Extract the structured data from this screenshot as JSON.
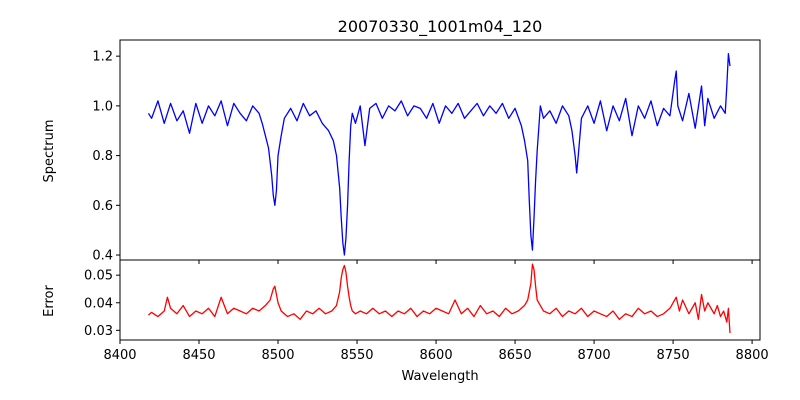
{
  "chart_data": [
    {
      "type": "line",
      "title": "20070330_1001m04_120",
      "xlabel": "",
      "ylabel": "Spectrum",
      "xlim": [
        8400,
        8805
      ],
      "ylim": [
        0.38,
        1.265
      ],
      "xticks": [
        8400,
        8450,
        8500,
        8550,
        8600,
        8650,
        8700,
        8750,
        8800
      ],
      "xticks_labeled": false,
      "yticks": [
        0.4,
        0.6,
        0.8,
        1.0,
        1.2
      ],
      "ytick_labels": [
        "0.4",
        "0.6",
        "0.8",
        "1.0",
        "1.2"
      ],
      "grid": false,
      "series": [
        {
          "color": "#0000ff",
          "x": [
            8418,
            8420,
            8424,
            8428,
            8432,
            8436,
            8440,
            8444,
            8448,
            8452,
            8456,
            8460,
            8464,
            8468,
            8472,
            8476,
            8480,
            8484,
            8488,
            8490,
            8492,
            8494,
            8496,
            8497,
            8498,
            8499,
            8500,
            8502,
            8504,
            8508,
            8512,
            8516,
            8520,
            8524,
            8528,
            8532,
            8535,
            8537,
            8539,
            8540,
            8541,
            8542,
            8543,
            8544,
            8545,
            8546,
            8547,
            8549,
            8552,
            8555,
            8558,
            8562,
            8566,
            8570,
            8574,
            8578,
            8582,
            8586,
            8590,
            8594,
            8598,
            8602,
            8606,
            8610,
            8614,
            8618,
            8622,
            8626,
            8630,
            8634,
            8638,
            8642,
            8646,
            8650,
            8654,
            8656,
            8658,
            8659,
            8660,
            8661,
            8662,
            8663,
            8664,
            8665,
            8666,
            8668,
            8672,
            8676,
            8680,
            8684,
            8686,
            8688,
            8689,
            8690,
            8692,
            8696,
            8700,
            8704,
            8708,
            8712,
            8716,
            8720,
            8724,
            8728,
            8732,
            8736,
            8740,
            8744,
            8748,
            8751,
            8752,
            8753,
            8756,
            8760,
            8764,
            8768,
            8770,
            8772,
            8776,
            8780,
            8783,
            8784,
            8785,
            8786
          ],
          "values": [
            0.97,
            0.95,
            1.02,
            0.93,
            1.01,
            0.94,
            0.98,
            0.89,
            1.01,
            0.93,
            1.0,
            0.96,
            1.02,
            0.92,
            1.01,
            0.97,
            0.94,
            1.0,
            0.97,
            0.93,
            0.88,
            0.83,
            0.72,
            0.64,
            0.6,
            0.66,
            0.8,
            0.88,
            0.95,
            0.99,
            0.94,
            1.01,
            0.96,
            0.98,
            0.93,
            0.9,
            0.86,
            0.8,
            0.67,
            0.55,
            0.45,
            0.4,
            0.47,
            0.6,
            0.78,
            0.92,
            0.97,
            0.93,
            1.0,
            0.84,
            0.99,
            1.01,
            0.95,
            1.0,
            0.98,
            1.02,
            0.96,
            1.0,
            0.99,
            0.95,
            1.01,
            0.93,
            1.0,
            0.97,
            1.01,
            0.95,
            0.98,
            1.01,
            0.96,
            1.0,
            0.97,
            1.01,
            0.95,
            0.99,
            0.92,
            0.86,
            0.78,
            0.62,
            0.48,
            0.42,
            0.55,
            0.7,
            0.82,
            0.91,
            1.0,
            0.95,
            0.98,
            0.93,
            1.0,
            0.96,
            0.9,
            0.8,
            0.73,
            0.8,
            0.95,
            1.0,
            0.93,
            1.02,
            0.9,
            1.0,
            0.94,
            1.03,
            0.88,
            1.0,
            0.95,
            1.02,
            0.92,
            0.99,
            0.96,
            1.1,
            1.14,
            1.0,
            0.94,
            1.05,
            0.91,
            1.08,
            0.92,
            1.03,
            0.95,
            1.0,
            0.97,
            1.08,
            1.21,
            1.16
          ]
        }
      ]
    },
    {
      "type": "line",
      "title": "",
      "xlabel": "Wavelength",
      "ylabel": "Error",
      "xlim": [
        8400,
        8805
      ],
      "ylim": [
        0.0265,
        0.0555
      ],
      "xticks": [
        8400,
        8450,
        8500,
        8550,
        8600,
        8650,
        8700,
        8750,
        8800
      ],
      "xtick_labels": [
        "8400",
        "8450",
        "8500",
        "8550",
        "8600",
        "8650",
        "8700",
        "8750",
        "8800"
      ],
      "yticks": [
        0.03,
        0.04,
        0.05
      ],
      "ytick_labels": [
        "0.03",
        "0.04",
        "0.05"
      ],
      "grid": false,
      "series": [
        {
          "color": "#ff0000",
          "x": [
            8418,
            8420,
            8424,
            8428,
            8430,
            8432,
            8436,
            8440,
            8444,
            8448,
            8452,
            8456,
            8460,
            8464,
            8468,
            8472,
            8476,
            8480,
            8484,
            8488,
            8492,
            8495,
            8497,
            8498,
            8499,
            8500,
            8502,
            8506,
            8510,
            8514,
            8518,
            8522,
            8526,
            8530,
            8534,
            8537,
            8539,
            8540,
            8541,
            8542,
            8543,
            8544,
            8545,
            8546,
            8547,
            8549,
            8552,
            8556,
            8560,
            8564,
            8568,
            8572,
            8576,
            8580,
            8584,
            8588,
            8592,
            8596,
            8600,
            8604,
            8608,
            8612,
            8616,
            8620,
            8624,
            8628,
            8632,
            8636,
            8640,
            8644,
            8648,
            8652,
            8656,
            8658,
            8660,
            8661,
            8662,
            8663,
            8664,
            8666,
            8668,
            8672,
            8676,
            8680,
            8684,
            8688,
            8692,
            8696,
            8700,
            8704,
            8708,
            8712,
            8716,
            8720,
            8724,
            8728,
            8732,
            8736,
            8740,
            8744,
            8748,
            8752,
            8754,
            8756,
            8760,
            8764,
            8766,
            8768,
            8770,
            8772,
            8776,
            8778,
            8780,
            8782,
            8784,
            8785,
            8786
          ],
          "values": [
            0.0355,
            0.0365,
            0.035,
            0.037,
            0.042,
            0.038,
            0.036,
            0.039,
            0.035,
            0.037,
            0.036,
            0.038,
            0.035,
            0.042,
            0.036,
            0.038,
            0.037,
            0.036,
            0.038,
            0.037,
            0.039,
            0.041,
            0.045,
            0.046,
            0.043,
            0.04,
            0.037,
            0.035,
            0.036,
            0.034,
            0.037,
            0.036,
            0.038,
            0.036,
            0.037,
            0.039,
            0.044,
            0.049,
            0.052,
            0.0535,
            0.051,
            0.046,
            0.042,
            0.039,
            0.037,
            0.036,
            0.037,
            0.036,
            0.038,
            0.036,
            0.037,
            0.035,
            0.037,
            0.036,
            0.038,
            0.035,
            0.037,
            0.036,
            0.038,
            0.037,
            0.036,
            0.041,
            0.036,
            0.038,
            0.035,
            0.039,
            0.036,
            0.037,
            0.035,
            0.038,
            0.036,
            0.037,
            0.039,
            0.041,
            0.047,
            0.054,
            0.052,
            0.046,
            0.041,
            0.039,
            0.037,
            0.036,
            0.038,
            0.035,
            0.037,
            0.036,
            0.038,
            0.035,
            0.037,
            0.036,
            0.035,
            0.037,
            0.034,
            0.036,
            0.035,
            0.038,
            0.036,
            0.037,
            0.035,
            0.036,
            0.038,
            0.042,
            0.037,
            0.041,
            0.036,
            0.04,
            0.034,
            0.043,
            0.037,
            0.04,
            0.036,
            0.039,
            0.035,
            0.037,
            0.033,
            0.038,
            0.029
          ]
        }
      ]
    }
  ]
}
